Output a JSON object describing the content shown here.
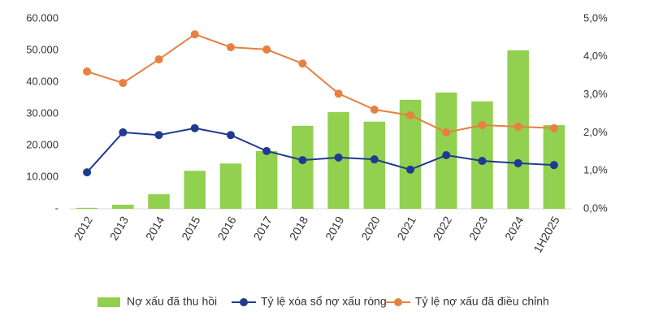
{
  "chart_data": {
    "type": "bar_line",
    "categories": [
      "2012",
      "2013",
      "2014",
      "2015",
      "2016",
      "2017",
      "2018",
      "2019",
      "2020",
      "2021",
      "2022",
      "2023",
      "2024",
      "1H2025"
    ],
    "series": [
      {
        "name": "Nợ xấu đã thu hồi",
        "type": "bar",
        "color": "#92d050",
        "axis": "y",
        "values": [
          300,
          1300,
          4600,
          12000,
          14300,
          18200,
          26200,
          30500,
          27500,
          34400,
          36700,
          33900,
          50000,
          26400
        ]
      },
      {
        "name": "Tỷ lệ xóa sổ nợ xấu ròng",
        "type": "line",
        "color": "#1f3b8f",
        "axis": "y2",
        "values": [
          0.96,
          2.01,
          1.94,
          2.12,
          1.94,
          1.52,
          1.28,
          1.35,
          1.3,
          1.03,
          1.41,
          1.26,
          1.2,
          1.15
        ]
      },
      {
        "name": "Tỷ lệ nợ xấu đã điều chỉnh",
        "type": "line",
        "color": "#e8803f",
        "axis": "y2",
        "values": [
          3.61,
          3.31,
          3.93,
          4.59,
          4.25,
          4.19,
          3.82,
          3.03,
          2.61,
          2.46,
          2.01,
          2.2,
          2.16,
          2.12
        ]
      }
    ],
    "ylim": [
      0,
      60000
    ],
    "yticks": [
      {
        "value": 0,
        "label": "-"
      },
      {
        "value": 10000,
        "label": "10.000"
      },
      {
        "value": 20000,
        "label": "20.000"
      },
      {
        "value": 30000,
        "label": "30.000"
      },
      {
        "value": 40000,
        "label": "40.000"
      },
      {
        "value": 50000,
        "label": "50.000"
      },
      {
        "value": 60000,
        "label": "60.000"
      }
    ],
    "y2lim": [
      0,
      5
    ],
    "y2ticks": [
      {
        "value": 0,
        "label": "0,0%"
      },
      {
        "value": 1,
        "label": "1,0%"
      },
      {
        "value": 2,
        "label": "2,0%"
      },
      {
        "value": 3,
        "label": "3,0%"
      },
      {
        "value": 4,
        "label": "4,0%"
      },
      {
        "value": 5,
        "label": "5,0%"
      }
    ],
    "legend": "bottom"
  }
}
